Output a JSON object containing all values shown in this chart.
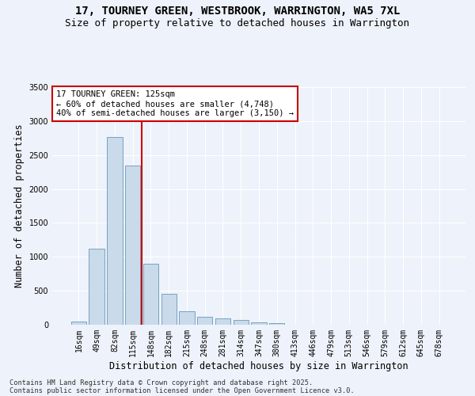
{
  "title_line1": "17, TOURNEY GREEN, WESTBROOK, WARRINGTON, WA5 7XL",
  "title_line2": "Size of property relative to detached houses in Warrington",
  "xlabel": "Distribution of detached houses by size in Warrington",
  "ylabel": "Number of detached properties",
  "bar_color": "#c9daea",
  "bar_edge_color": "#6699bb",
  "background_color": "#eef2fa",
  "grid_color": "#ffffff",
  "categories": [
    "16sqm",
    "49sqm",
    "82sqm",
    "115sqm",
    "148sqm",
    "182sqm",
    "215sqm",
    "248sqm",
    "281sqm",
    "314sqm",
    "347sqm",
    "380sqm",
    "413sqm",
    "446sqm",
    "479sqm",
    "513sqm",
    "546sqm",
    "579sqm",
    "612sqm",
    "645sqm",
    "678sqm"
  ],
  "values": [
    50,
    1120,
    2760,
    2340,
    900,
    450,
    195,
    115,
    90,
    65,
    35,
    20,
    5,
    5,
    0,
    0,
    0,
    0,
    0,
    0,
    0
  ],
  "vline_x_left": 3.5,
  "vline_color": "#cc0000",
  "annotation_text": "17 TOURNEY GREEN: 125sqm\n← 60% of detached houses are smaller (4,748)\n40% of semi-detached houses are larger (3,150) →",
  "annotation_box_color": "#ffffff",
  "annotation_box_edge": "#cc0000",
  "ylim": [
    0,
    3500
  ],
  "yticks": [
    0,
    500,
    1000,
    1500,
    2000,
    2500,
    3000,
    3500
  ],
  "footnote1": "Contains HM Land Registry data © Crown copyright and database right 2025.",
  "footnote2": "Contains public sector information licensed under the Open Government Licence v3.0.",
  "title_fontsize": 10,
  "subtitle_fontsize": 9,
  "axis_label_fontsize": 8.5,
  "tick_fontsize": 7,
  "annotation_fontsize": 7.5
}
